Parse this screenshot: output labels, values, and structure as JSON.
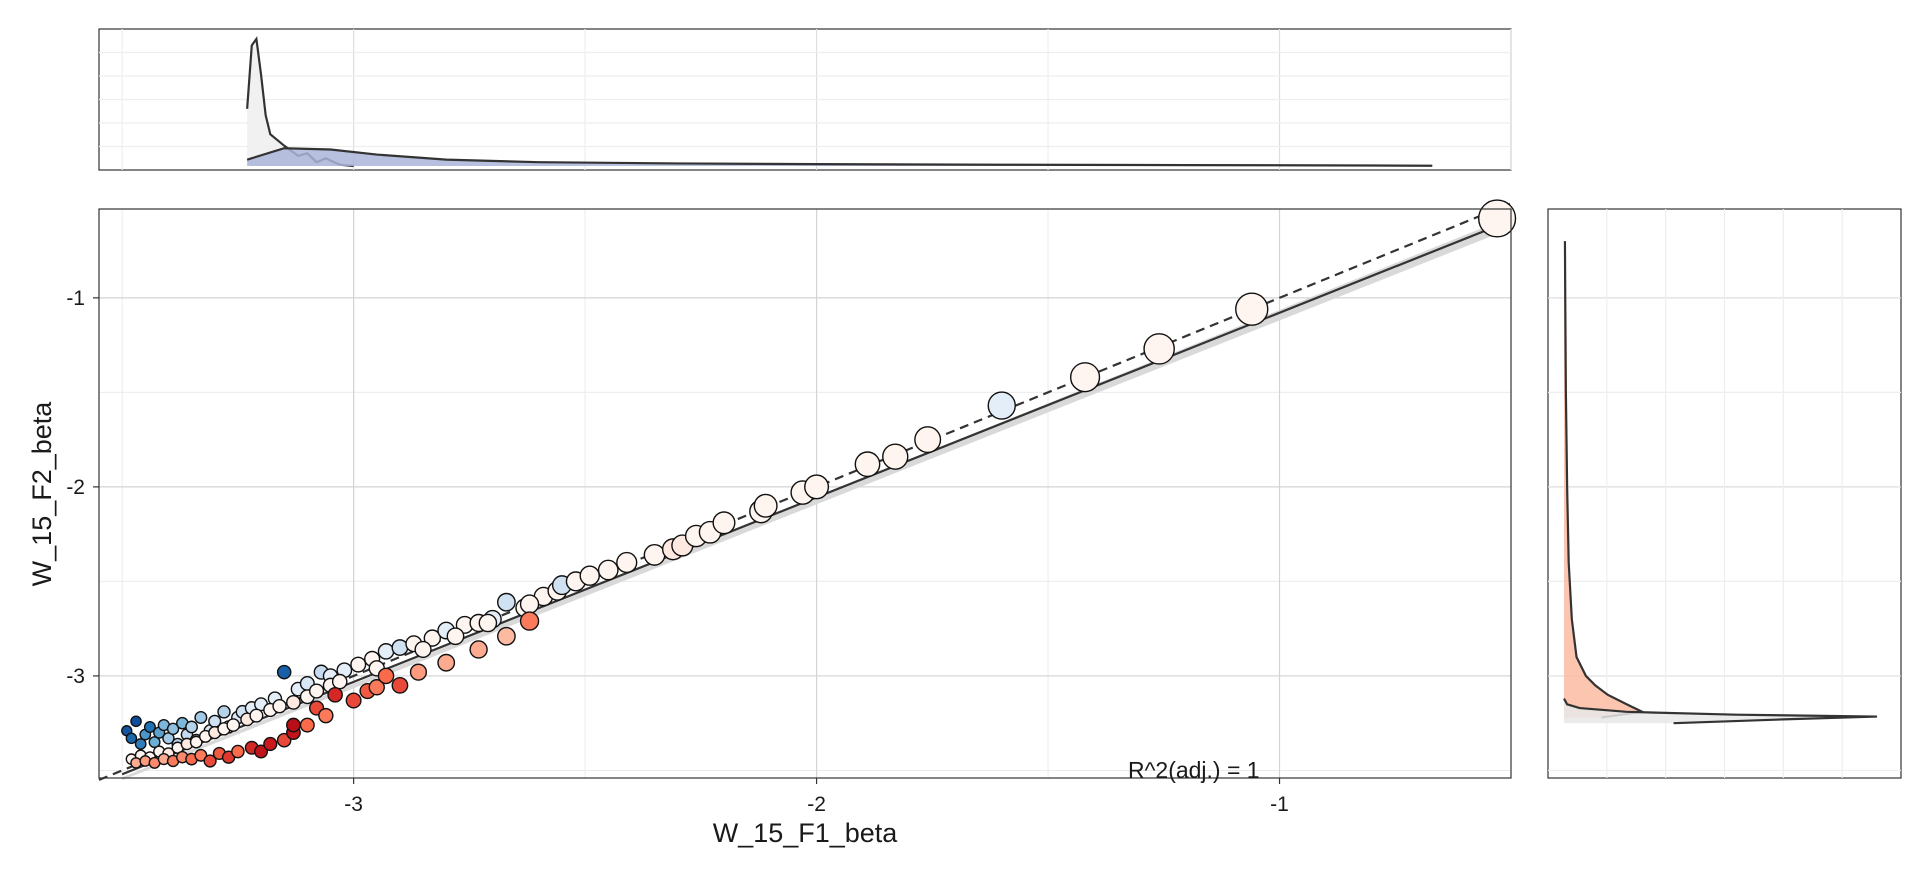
{
  "chart_data": {
    "type": "scatter",
    "title": "",
    "xlabel": "W_15_F1_beta",
    "ylabel": "W_15_F2_beta",
    "xlim": [
      -3.55,
      -0.5
    ],
    "ylim": [
      -3.54,
      -0.53
    ],
    "xticks": [
      -3,
      -2,
      -1
    ],
    "yticks": [
      -3,
      -2,
      -1
    ],
    "x_tick_labels": [
      "-3",
      "-2",
      "-1"
    ],
    "y_tick_labels": [
      "-3",
      "-2",
      "-1"
    ],
    "grid": true,
    "annotation": "R^2(adj.) = 1",
    "identity_line": {
      "style": "dashed",
      "x": [
        -3.55,
        -0.5
      ],
      "y": [
        -3.55,
        -0.5
      ]
    },
    "fit_line": {
      "style": "solid",
      "x": [
        -3.5,
        -0.52
      ],
      "y": [
        -3.52,
        -0.61
      ]
    },
    "color_scale": "blue-white-red diverging",
    "points": [
      {
        "x": -3.49,
        "y": -3.29,
        "c": -0.9
      },
      {
        "x": -3.48,
        "y": -3.33,
        "c": -0.8
      },
      {
        "x": -3.47,
        "y": -3.24,
        "c": -0.95
      },
      {
        "x": -3.46,
        "y": -3.36,
        "c": -0.7
      },
      {
        "x": -3.45,
        "y": -3.31,
        "c": -0.6
      },
      {
        "x": -3.44,
        "y": -3.27,
        "c": -0.75
      },
      {
        "x": -3.43,
        "y": -3.35,
        "c": -0.5
      },
      {
        "x": -3.42,
        "y": -3.3,
        "c": -0.55
      },
      {
        "x": -3.41,
        "y": -3.26,
        "c": -0.45
      },
      {
        "x": -3.4,
        "y": -3.33,
        "c": -0.35
      },
      {
        "x": -3.39,
        "y": -3.28,
        "c": -0.4
      },
      {
        "x": -3.38,
        "y": -3.36,
        "c": -0.3
      },
      {
        "x": -3.37,
        "y": -3.25,
        "c": -0.45
      },
      {
        "x": -3.36,
        "y": -3.31,
        "c": -0.25
      },
      {
        "x": -3.35,
        "y": -3.27,
        "c": -0.3
      },
      {
        "x": -3.34,
        "y": -3.34,
        "c": -0.2
      },
      {
        "x": -3.33,
        "y": -3.22,
        "c": -0.35
      },
      {
        "x": -3.31,
        "y": -3.29,
        "c": -0.15
      },
      {
        "x": -3.3,
        "y": -3.24,
        "c": -0.2
      },
      {
        "x": -3.28,
        "y": -3.19,
        "c": -0.3
      },
      {
        "x": -3.27,
        "y": -3.27,
        "c": -0.1
      },
      {
        "x": -3.25,
        "y": -3.22,
        "c": -0.15
      },
      {
        "x": -3.24,
        "y": -3.19,
        "c": -0.2
      },
      {
        "x": -3.22,
        "y": -3.17,
        "c": -0.1
      },
      {
        "x": -3.2,
        "y": -3.15,
        "c": -0.1
      },
      {
        "x": -3.17,
        "y": -3.12,
        "c": -0.1
      },
      {
        "x": -3.15,
        "y": -2.98,
        "c": -0.85
      },
      {
        "x": -3.12,
        "y": -3.07,
        "c": -0.1
      },
      {
        "x": -3.1,
        "y": -3.04,
        "c": -0.15
      },
      {
        "x": -3.07,
        "y": -2.98,
        "c": -0.25
      },
      {
        "x": -3.05,
        "y": -3.0,
        "c": -0.1
      },
      {
        "x": -3.02,
        "y": -2.97,
        "c": -0.1
      },
      {
        "x": -2.99,
        "y": -2.94,
        "c": 0.0
      },
      {
        "x": -2.96,
        "y": -2.91,
        "c": 0.0
      },
      {
        "x": -2.93,
        "y": -2.87,
        "c": -0.1
      },
      {
        "x": -2.9,
        "y": -2.85,
        "c": -0.2
      },
      {
        "x": -2.87,
        "y": -2.83,
        "c": 0.0
      },
      {
        "x": -2.83,
        "y": -2.8,
        "c": 0.0
      },
      {
        "x": -2.8,
        "y": -2.76,
        "c": -0.1
      },
      {
        "x": -2.76,
        "y": -2.73,
        "c": 0.0
      },
      {
        "x": -2.73,
        "y": -2.72,
        "c": 0.0
      },
      {
        "x": -2.7,
        "y": -2.7,
        "c": -0.1
      },
      {
        "x": -2.67,
        "y": -2.61,
        "c": -0.2
      },
      {
        "x": -2.63,
        "y": -2.64,
        "c": 0.0
      },
      {
        "x": -2.59,
        "y": -2.58,
        "c": 0.0
      },
      {
        "x": -2.56,
        "y": -2.55,
        "c": 0.0
      },
      {
        "x": -2.55,
        "y": -2.52,
        "c": -0.2
      },
      {
        "x": -2.52,
        "y": -2.5,
        "c": 0.0
      },
      {
        "x": -2.49,
        "y": -2.47,
        "c": 0.0
      },
      {
        "x": -2.45,
        "y": -2.44,
        "c": 0.0
      },
      {
        "x": -2.41,
        "y": -2.4,
        "c": 0.0
      },
      {
        "x": -2.35,
        "y": -2.36,
        "c": 0.0
      },
      {
        "x": -2.31,
        "y": -2.33,
        "c": 0.05
      },
      {
        "x": -2.29,
        "y": -2.31,
        "c": 0.05
      },
      {
        "x": -2.26,
        "y": -2.26,
        "c": 0.0
      },
      {
        "x": -2.23,
        "y": -2.24,
        "c": 0.0
      },
      {
        "x": -2.2,
        "y": -2.19,
        "c": 0.0
      },
      {
        "x": -2.12,
        "y": -2.13,
        "c": 0.0
      },
      {
        "x": -2.11,
        "y": -2.1,
        "c": 0.0
      },
      {
        "x": -2.03,
        "y": -2.03,
        "c": 0.0
      },
      {
        "x": -2.0,
        "y": -2.0,
        "c": 0.0
      },
      {
        "x": -1.89,
        "y": -1.88,
        "c": 0.0
      },
      {
        "x": -1.83,
        "y": -1.84,
        "c": 0.0
      },
      {
        "x": -1.76,
        "y": -1.75,
        "c": 0.0
      },
      {
        "x": -1.6,
        "y": -1.57,
        "c": -0.1
      },
      {
        "x": -1.42,
        "y": -1.42,
        "c": 0.0
      },
      {
        "x": -1.26,
        "y": -1.27,
        "c": 0.0
      },
      {
        "x": -1.06,
        "y": -1.06,
        "c": 0.0
      },
      {
        "x": -0.53,
        "y": -0.58,
        "c": 0.0
      },
      {
        "x": -3.48,
        "y": -3.44,
        "c": 0.0
      },
      {
        "x": -3.46,
        "y": -3.42,
        "c": 0.0
      },
      {
        "x": -3.44,
        "y": -3.43,
        "c": 0.0
      },
      {
        "x": -3.42,
        "y": -3.4,
        "c": 0.0
      },
      {
        "x": -3.4,
        "y": -3.41,
        "c": 0.05
      },
      {
        "x": -3.38,
        "y": -3.38,
        "c": 0.0
      },
      {
        "x": -3.36,
        "y": -3.36,
        "c": 0.05
      },
      {
        "x": -3.34,
        "y": -3.35,
        "c": 0.0
      },
      {
        "x": -3.32,
        "y": -3.32,
        "c": 0.0
      },
      {
        "x": -3.3,
        "y": -3.3,
        "c": 0.05
      },
      {
        "x": -3.28,
        "y": -3.28,
        "c": 0.0
      },
      {
        "x": -3.26,
        "y": -3.26,
        "c": 0.0
      },
      {
        "x": -3.23,
        "y": -3.23,
        "c": 0.05
      },
      {
        "x": -3.21,
        "y": -3.21,
        "c": 0.0
      },
      {
        "x": -3.18,
        "y": -3.18,
        "c": 0.0
      },
      {
        "x": -3.16,
        "y": -3.16,
        "c": 0.0
      },
      {
        "x": -3.13,
        "y": -3.14,
        "c": 0.05
      },
      {
        "x": -3.1,
        "y": -3.11,
        "c": 0.0
      },
      {
        "x": -3.08,
        "y": -3.08,
        "c": 0.0
      },
      {
        "x": -3.05,
        "y": -3.05,
        "c": 0.0
      },
      {
        "x": -3.03,
        "y": -3.03,
        "c": 0.0
      },
      {
        "x": -2.95,
        "y": -2.96,
        "c": 0.0
      },
      {
        "x": -2.85,
        "y": -2.86,
        "c": 0.0
      },
      {
        "x": -2.78,
        "y": -2.79,
        "c": 0.0
      },
      {
        "x": -2.71,
        "y": -2.72,
        "c": 0.0
      },
      {
        "x": -2.62,
        "y": -2.62,
        "c": 0.0
      },
      {
        "x": -3.47,
        "y": -3.46,
        "c": 0.3
      },
      {
        "x": -3.45,
        "y": -3.45,
        "c": 0.35
      },
      {
        "x": -3.43,
        "y": -3.46,
        "c": 0.4
      },
      {
        "x": -3.41,
        "y": -3.44,
        "c": 0.3
      },
      {
        "x": -3.39,
        "y": -3.45,
        "c": 0.45
      },
      {
        "x": -3.37,
        "y": -3.43,
        "c": 0.4
      },
      {
        "x": -3.35,
        "y": -3.44,
        "c": 0.5
      },
      {
        "x": -3.33,
        "y": -3.42,
        "c": 0.45
      },
      {
        "x": -3.31,
        "y": -3.45,
        "c": 0.6
      },
      {
        "x": -3.29,
        "y": -3.41,
        "c": 0.55
      },
      {
        "x": -3.27,
        "y": -3.43,
        "c": 0.65
      },
      {
        "x": -3.25,
        "y": -3.4,
        "c": 0.5
      },
      {
        "x": -3.22,
        "y": -3.38,
        "c": 0.7
      },
      {
        "x": -3.2,
        "y": -3.4,
        "c": 0.8
      },
      {
        "x": -3.18,
        "y": -3.36,
        "c": 0.75
      },
      {
        "x": -3.15,
        "y": -3.34,
        "c": 0.6
      },
      {
        "x": -3.13,
        "y": -3.3,
        "c": 0.8
      },
      {
        "x": -3.13,
        "y": -3.26,
        "c": 0.85
      },
      {
        "x": -3.1,
        "y": -3.26,
        "c": 0.5
      },
      {
        "x": -3.08,
        "y": -3.17,
        "c": 0.6
      },
      {
        "x": -3.06,
        "y": -3.21,
        "c": 0.45
      },
      {
        "x": -3.04,
        "y": -3.1,
        "c": 0.7
      },
      {
        "x": -3.0,
        "y": -3.13,
        "c": 0.6
      },
      {
        "x": -2.97,
        "y": -3.08,
        "c": 0.55
      },
      {
        "x": -2.95,
        "y": -3.06,
        "c": 0.45
      },
      {
        "x": -2.93,
        "y": -3.0,
        "c": 0.5
      },
      {
        "x": -2.9,
        "y": -3.05,
        "c": 0.6
      },
      {
        "x": -2.86,
        "y": -2.98,
        "c": 0.35
      },
      {
        "x": -2.8,
        "y": -2.93,
        "c": 0.3
      },
      {
        "x": -2.73,
        "y": -2.86,
        "c": 0.3
      },
      {
        "x": -2.67,
        "y": -2.79,
        "c": 0.25
      },
      {
        "x": -2.62,
        "y": -2.71,
        "c": 0.45
      }
    ]
  },
  "top_density": {
    "curves": [
      {
        "fill": "#eeeeee",
        "x": [
          -3.23,
          -3.22,
          -3.21,
          -3.2,
          -3.19,
          -3.18,
          -3.17,
          -3.15,
          -3.12,
          -3.1,
          -3.08,
          -3.06,
          -3.03,
          -3.0
        ],
        "y": [
          0.45,
          0.95,
          1.0,
          0.72,
          0.4,
          0.25,
          0.22,
          0.16,
          0.08,
          0.1,
          0.03,
          0.06,
          0.01,
          0.0
        ]
      },
      {
        "fill": "#aab5d8",
        "x": [
          -3.23,
          -3.15,
          -3.05,
          -2.95,
          -2.8,
          -2.6,
          -2.3,
          -2.0,
          -1.6,
          -1.2,
          -0.8,
          -0.67
        ],
        "y": [
          0.05,
          0.14,
          0.13,
          0.09,
          0.05,
          0.03,
          0.02,
          0.015,
          0.01,
          0.007,
          0.004,
          0.002
        ]
      }
    ]
  },
  "right_density": {
    "curves": [
      {
        "fill": "#fcbba1",
        "y": [
          -3.22,
          -3.19,
          -3.15,
          -3.1,
          -3.05,
          -3.0,
          -2.9,
          -2.7,
          -2.4,
          -2.0,
          -1.5,
          -1.0,
          -0.7
        ],
        "x": [
          0.12,
          0.25,
          0.2,
          0.14,
          0.1,
          0.07,
          0.04,
          0.025,
          0.015,
          0.01,
          0.006,
          0.004,
          0.003
        ]
      },
      {
        "fill": "#e8e8e8",
        "y": [
          -3.25,
          -3.23,
          -3.215,
          -3.205,
          -3.19,
          -3.17,
          -3.15,
          -3.12
        ],
        "x": [
          0.35,
          0.7,
          1.0,
          0.55,
          0.2,
          0.05,
          0.01,
          0.0
        ]
      }
    ]
  }
}
